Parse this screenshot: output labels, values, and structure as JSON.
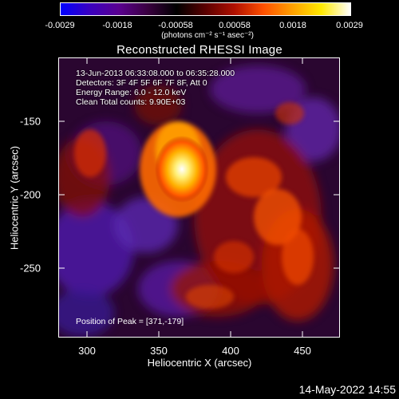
{
  "colorbar": {
    "ticks": [
      "-0.0029",
      "-0.0018",
      "-0.00058",
      "0.00058",
      "0.0018",
      "0.0029"
    ],
    "unit": "(photons cm⁻² s⁻¹ asec⁻²)",
    "colors": [
      "#0000ff",
      "#3a00c0",
      "#5a0090",
      "#3a0040",
      "#000000",
      "#5a0000",
      "#b01000",
      "#ff5000",
      "#ffa000",
      "#ffe800",
      "#ffffff"
    ]
  },
  "title": "Reconstructed RHESSI Image",
  "info": [
    "13-Jun-2013 06:33:08.000 to 06:35:28.000",
    "Detectors: 3F 4F 5F 6F 7F 8F, Att 0",
    "Energy Range: 6.0 - 12.0 keV",
    "Clean     Total counts: 9.90E+03"
  ],
  "peak_text": "Position of Peak = [371,-179]",
  "x_axis": {
    "label": "Heliocentric X (arcsec)",
    "ticks": [
      "300",
      "350",
      "400",
      "450"
    ],
    "range": [
      280,
      475
    ]
  },
  "y_axis": {
    "label": "Heliocentric Y (arcsec)",
    "ticks": [
      "-150",
      "-200",
      "-250"
    ],
    "range": [
      -295,
      -110
    ]
  },
  "footer_date": "14-May-2022 14:55"
}
